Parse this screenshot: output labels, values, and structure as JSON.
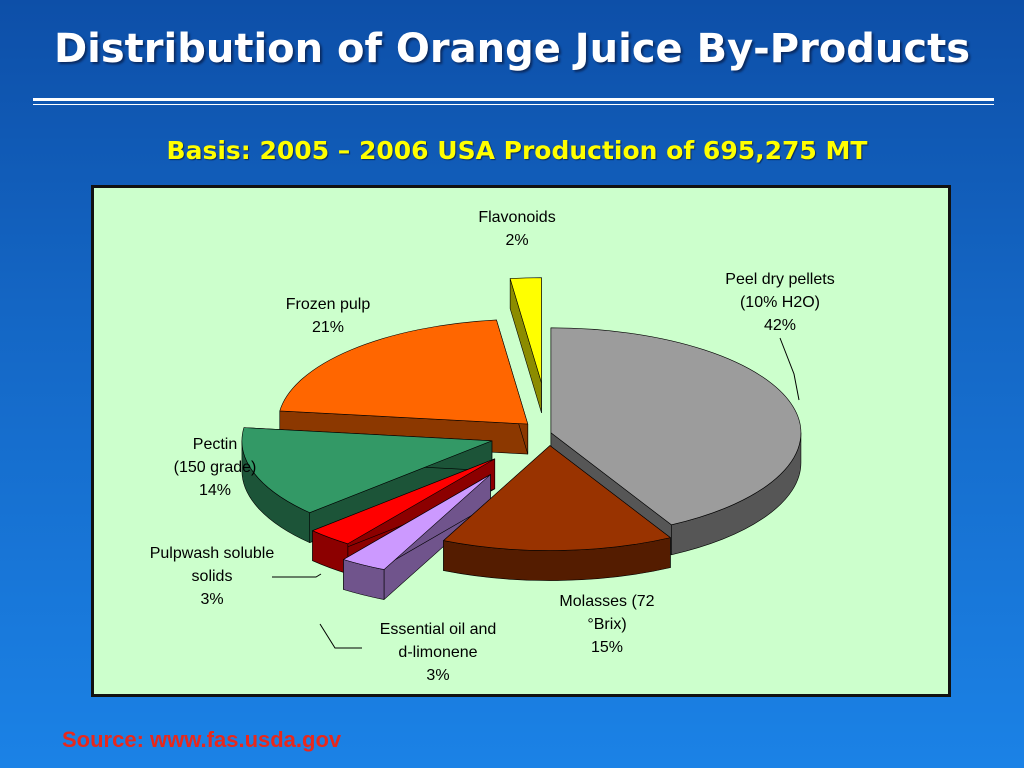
{
  "slide": {
    "title": "Distribution of Orange Juice By-Products",
    "subtitle": "Basis:  2005 – 2006 USA Production of 695,275 MT",
    "source": "Source:  www.fas.usda.gov"
  },
  "chart_data": {
    "type": "pie",
    "style": "3d-exploded",
    "slices": [
      {
        "label_lines": [
          "Peel dry pellets",
          "(10% H2O)"
        ],
        "value": 42,
        "pct_label": "42%",
        "color": "#9c9c9c"
      },
      {
        "label_lines": [
          "Molasses (72",
          "°Brix)"
        ],
        "value": 15,
        "pct_label": "15%",
        "color": "#993300"
      },
      {
        "label_lines": [
          "Essential oil and",
          "d-limonene"
        ],
        "value": 3,
        "pct_label": "3%",
        "color": "#cc99ff"
      },
      {
        "label_lines": [
          "Pulpwash soluble",
          "solids"
        ],
        "value": 3,
        "pct_label": "3%",
        "color": "#ff0000"
      },
      {
        "label_lines": [
          "Pectin",
          "(150 grade)"
        ],
        "value": 14,
        "pct_label": "14%",
        "color": "#339966"
      },
      {
        "label_lines": [
          "Frozen pulp"
        ],
        "value": 21,
        "pct_label": "21%",
        "color": "#ff6600"
      },
      {
        "label_lines": [
          "Flavonoids"
        ],
        "value": 2,
        "pct_label": "2%",
        "color": "#ffff00"
      }
    ],
    "legend": "none",
    "data_labels": "outside"
  }
}
